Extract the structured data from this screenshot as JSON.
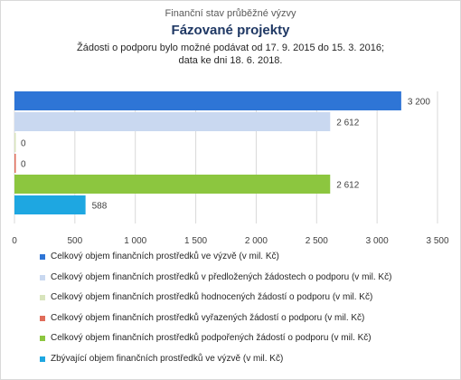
{
  "header": {
    "line1": "Finanční stav průběžné výzvy",
    "title": "Fázované projekty",
    "line3": "Žádosti o podporu bylo možné  podávat od 17. 9. 2015 do 15. 3. 2016;",
    "line4": "data ke dni 18. 6. 2018."
  },
  "chart_data": {
    "type": "bar",
    "orientation": "horizontal",
    "xlim": [
      0,
      3500
    ],
    "xticks": [
      0,
      500,
      1000,
      1500,
      2000,
      2500,
      3000,
      3500
    ],
    "xtick_labels": [
      "0",
      "500",
      "1 000",
      "1 500",
      "2 000",
      "2 500",
      "3 000",
      "3 500"
    ],
    "grid": "vertical",
    "legend_position": "bottom",
    "series": [
      {
        "name": "Celkový objem finančních prostředků ve výzvě (v mil. Kč)",
        "value": 3200,
        "label": "3 200",
        "color": "#2e75d6"
      },
      {
        "name": "Celkový objem finančních prostředků v předložených žádostech o podporu (v mil. Kč)",
        "value": 2612,
        "label": "2 612",
        "color": "#c9d8f0"
      },
      {
        "name": "Celkový objem finančních prostředků hodnocených žádostí o podporu (v mil. Kč)",
        "value": 0,
        "label": "0",
        "color": "#d8e4bc"
      },
      {
        "name": "Celkový objem finančních prostředků vyřazených žádostí o podporu (v mil. Kč)",
        "value": 0,
        "label": "0",
        "color": "#e06c5a"
      },
      {
        "name": "Celkový objem finančních prostředků podpořených žádostí o podporu (v mil. Kč)",
        "value": 2612,
        "label": "2 612",
        "color": "#8cc63f"
      },
      {
        "name": "Zbývající objem finančních prostředků ve výzvě (v mil. Kč)",
        "value": 588,
        "label": "588",
        "color": "#1ea7e1"
      }
    ]
  }
}
